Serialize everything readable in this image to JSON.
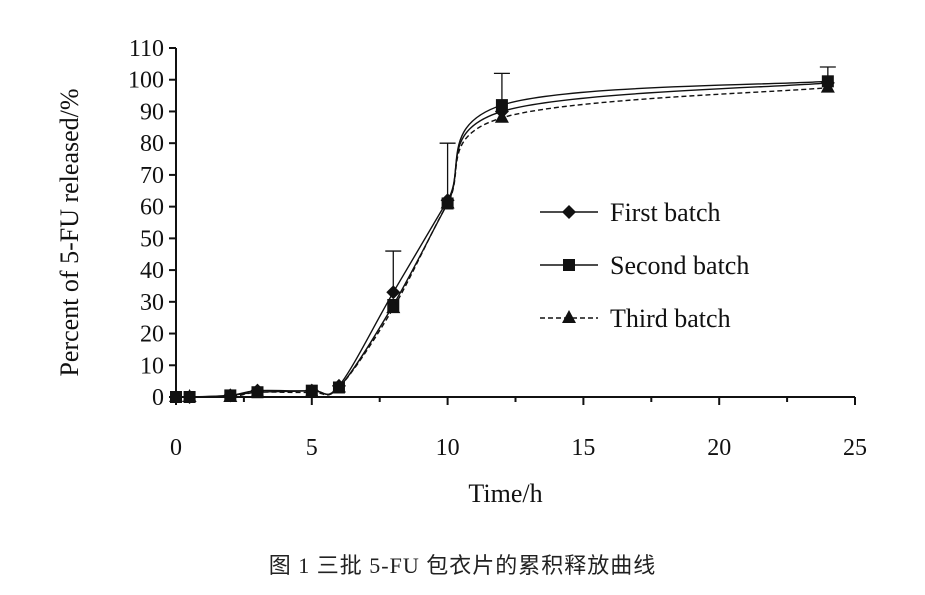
{
  "chart_data": {
    "type": "line",
    "title": "",
    "xlabel": "Time/h",
    "ylabel": "Percent of 5-FU released/%",
    "xlim": [
      0,
      25
    ],
    "ylim": [
      0,
      110
    ],
    "x_ticks": [
      "0",
      "5",
      "10",
      "15",
      "20",
      "25"
    ],
    "y_ticks": [
      "0",
      "10",
      "20",
      "30",
      "40",
      "50",
      "60",
      "70",
      "80",
      "90",
      "100",
      "110"
    ],
    "grid": false,
    "legend_position": "right-center",
    "series": [
      {
        "name": "First batch",
        "marker": "diamond",
        "x": [
          0,
          0.5,
          2,
          3,
          5,
          6,
          8,
          10,
          12,
          24
        ],
        "y": [
          0,
          0,
          0.5,
          2,
          2,
          3.5,
          33,
          62,
          90,
          99
        ],
        "err": [
          0,
          0,
          0,
          0,
          0,
          0,
          13,
          18,
          12,
          5
        ]
      },
      {
        "name": "Second batch",
        "marker": "square",
        "x": [
          0,
          0.5,
          2,
          3,
          5,
          6,
          8,
          10,
          12,
          24
        ],
        "y": [
          0,
          0,
          0.5,
          1.5,
          2,
          3,
          29,
          61,
          92,
          99.5
        ],
        "err": [
          0,
          0,
          0,
          0,
          0,
          0,
          0,
          0,
          0,
          0
        ]
      },
      {
        "name": "Third batch",
        "marker": "triangle",
        "x": [
          0,
          0.5,
          2,
          3,
          5,
          6,
          8,
          10,
          12,
          24
        ],
        "y": [
          0,
          0,
          0,
          1.5,
          1.5,
          3,
          28,
          61,
          88,
          97.5
        ],
        "err": [
          0,
          0,
          0,
          0,
          0,
          0,
          0,
          0,
          0,
          0
        ]
      }
    ]
  },
  "caption": "图 1    三批 5-FU 包衣片的累积释放曲线"
}
